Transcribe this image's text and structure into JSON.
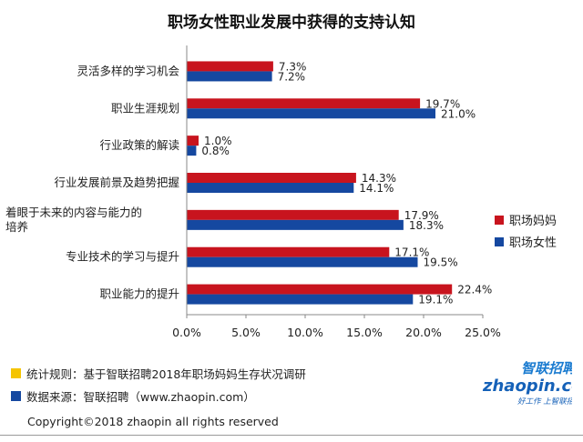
{
  "chart_data": {
    "type": "bar",
    "orientation": "horizontal",
    "title": "职场女性职业发展中获得的支持认知",
    "categories": [
      "灵活多样的学习机会",
      "职业生涯规划",
      "行业政策的解读",
      "行业发展前景及趋势把握",
      "着眼于未来的内容与能力的培养",
      "专业技术的学习与提升",
      "职业能力的提升"
    ],
    "category_lines": [
      [
        "灵活多样的学习机会"
      ],
      [
        "职业生涯规划"
      ],
      [
        "行业政策的解读"
      ],
      [
        "行业发展前景及趋势把握"
      ],
      [
        "着眼于未来的内容与能力的",
        "培养"
      ],
      [
        "专业技术的学习与提升"
      ],
      [
        "职业能力的提升"
      ]
    ],
    "series": [
      {
        "name": "职场妈妈",
        "color": "#c8141e",
        "values": [
          7.3,
          19.7,
          1.0,
          14.3,
          17.9,
          17.1,
          22.4
        ],
        "labels": [
          "7.3%",
          "19.7%",
          "1.0%",
          "14.3%",
          "17.9%",
          "17.1%",
          "22.4%"
        ]
      },
      {
        "name": "职场女性",
        "color": "#1548a0",
        "values": [
          7.2,
          21.0,
          0.8,
          14.1,
          18.3,
          19.5,
          19.1
        ],
        "labels": [
          "7.2%",
          "21.0%",
          "0.8%",
          "14.1%",
          "18.3%",
          "19.5%",
          "19.1%"
        ]
      }
    ],
    "xlim": [
      0,
      25
    ],
    "x_ticks": [
      "0.0%",
      "5.0%",
      "10.0%",
      "15.0%",
      "20.0%",
      "25.0%"
    ],
    "legend": "right",
    "grid": false
  },
  "notes": [
    {
      "text": "统计规则：基于智联招聘2018年职场妈妈生存状况调研",
      "color": "#f5c400"
    },
    {
      "text": "数据来源：智联招聘（www.zhaopin.com）",
      "color": "#1548a0"
    }
  ],
  "copyright": "Copyright©2018 zhaopin all rights reserved",
  "logo": {
    "cn": "智联招聘",
    "en": "zhaopin.com",
    "tagline": "好工作 上智联招聘"
  }
}
